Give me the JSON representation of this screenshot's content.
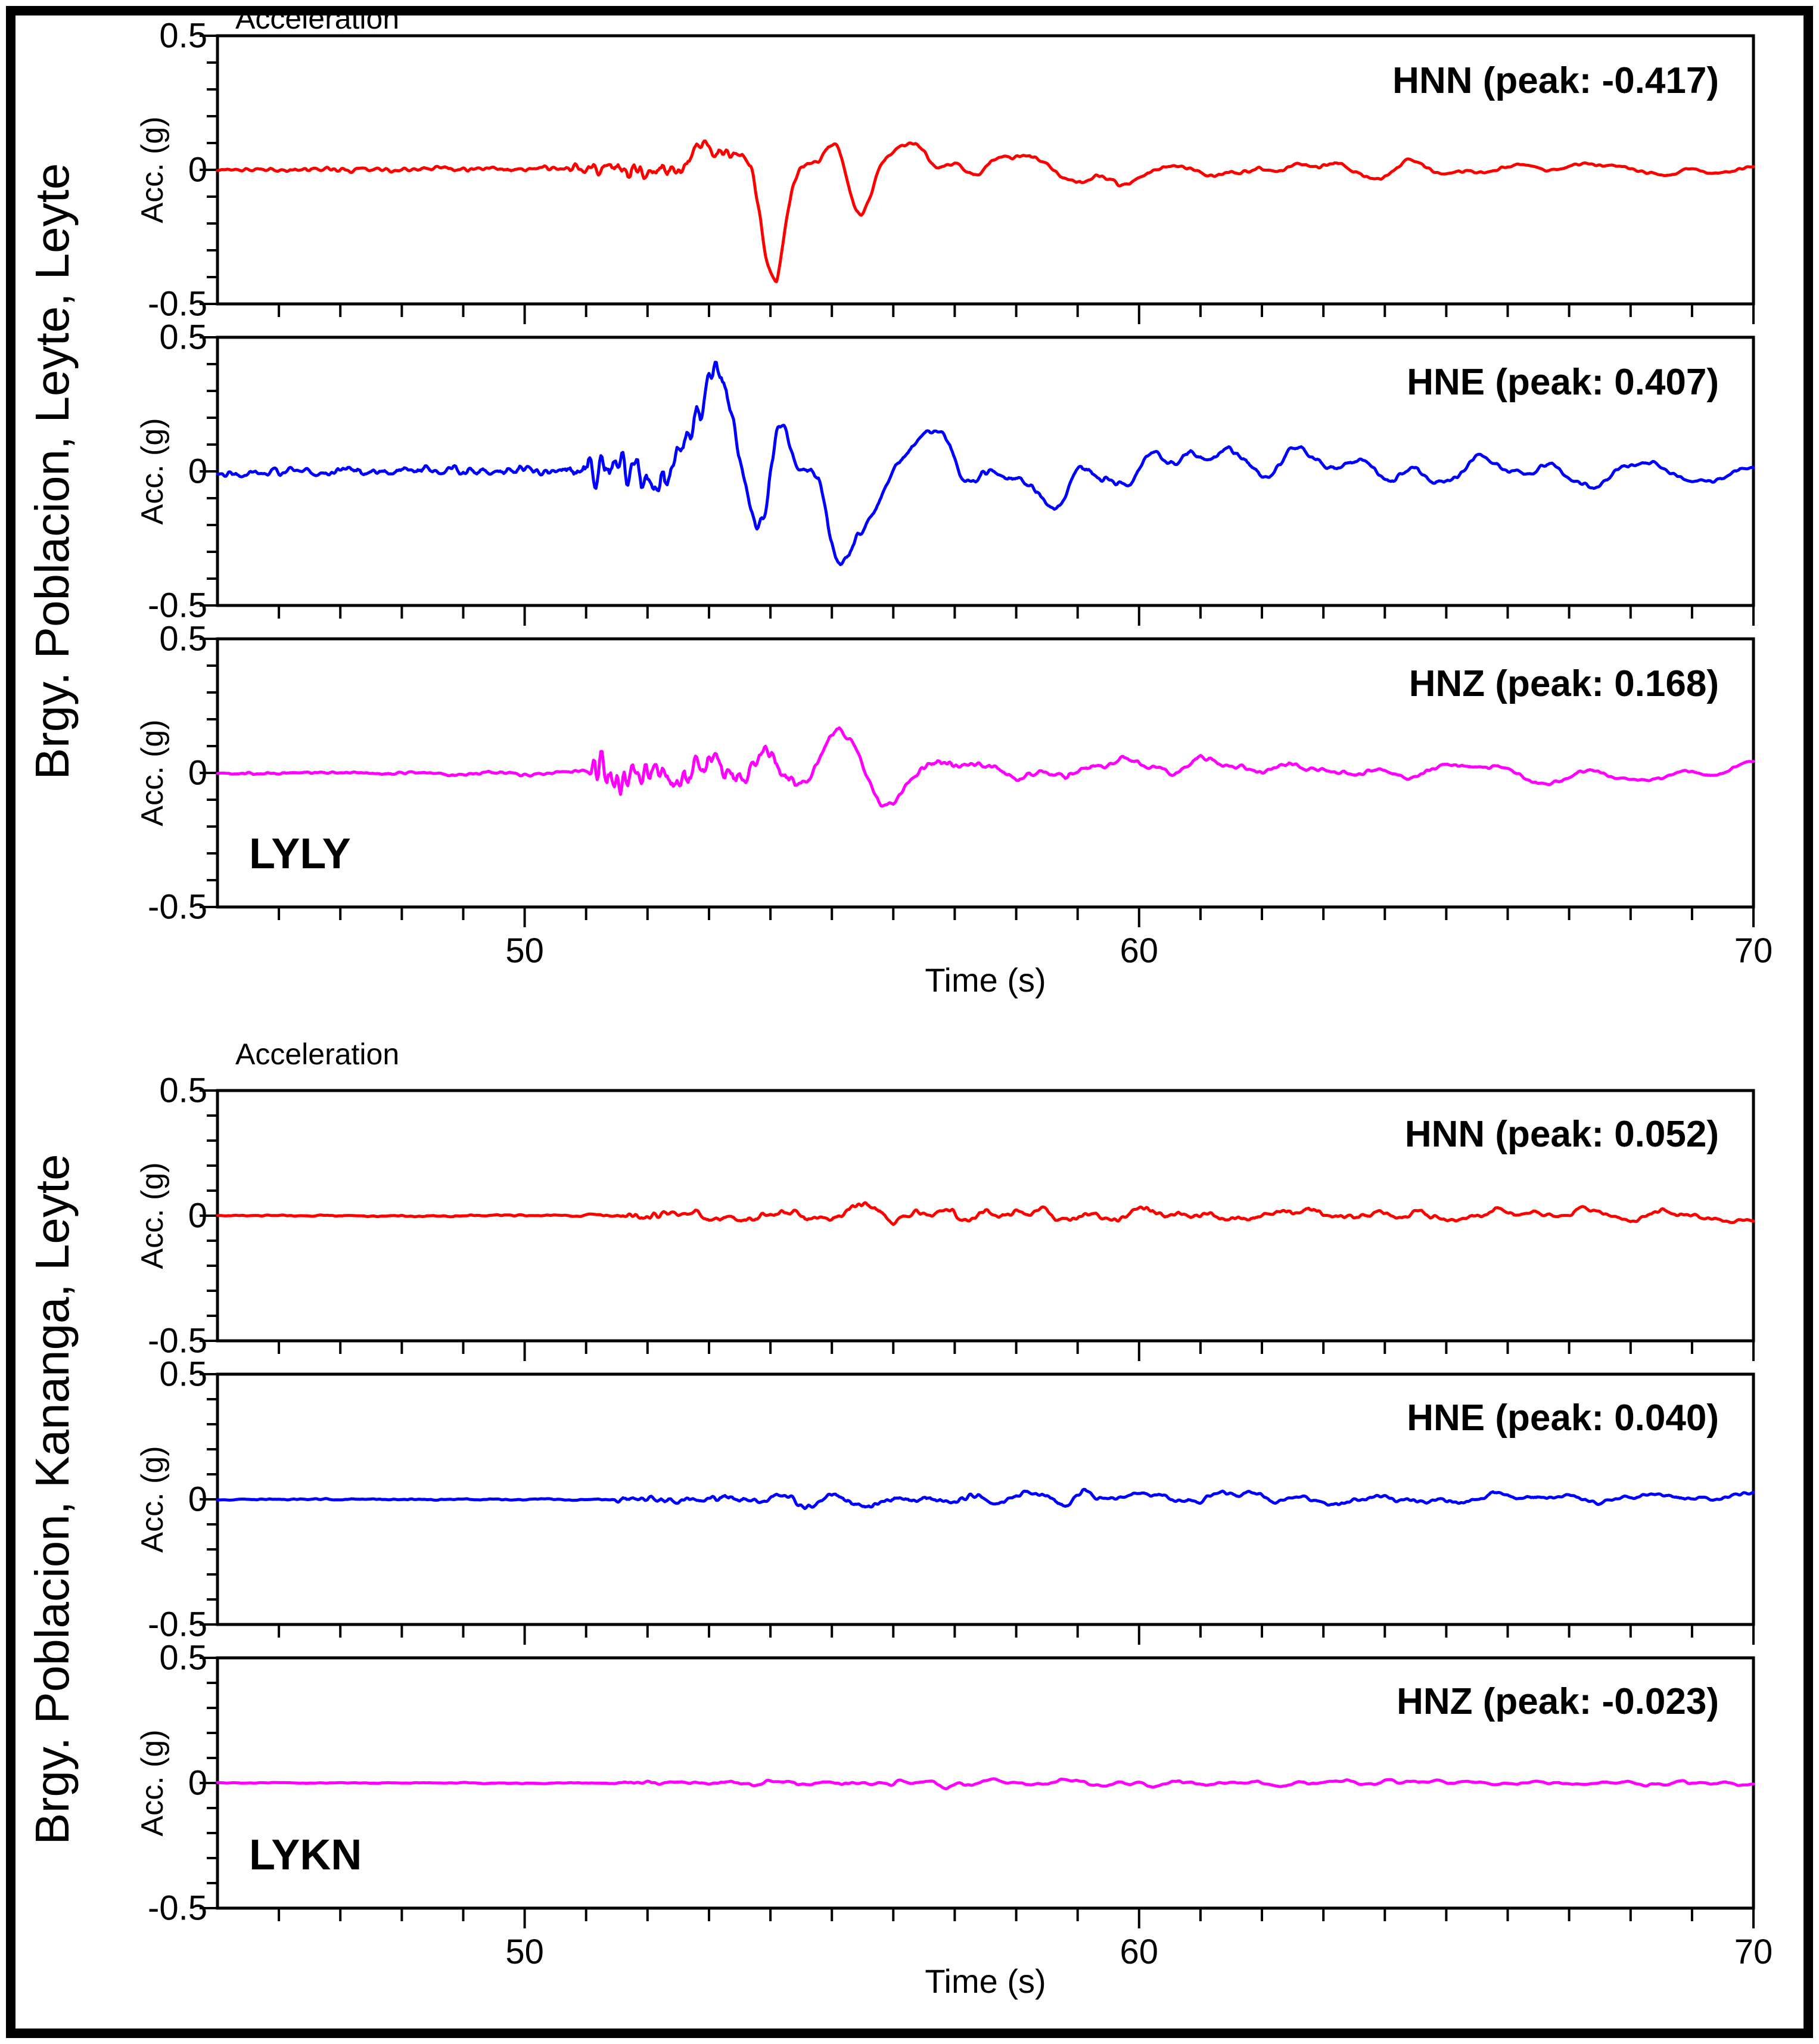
{
  "chart_data": {
    "type": "line",
    "title": "Acceleration",
    "xlabel": "Time (s)",
    "ylabel": "Acc. (g)",
    "x_range": [
      45,
      70
    ],
    "y_range": [
      -0.5,
      0.5
    ],
    "x_major_ticks": [
      50,
      60,
      70
    ],
    "x_minor_step": 1,
    "y_major_ticks": [
      0.5,
      0,
      -0.5
    ],
    "y_tick_labels": [
      "0.5",
      "0",
      "-0.5"
    ],
    "y_minor_step": 0.1,
    "grid": false,
    "background": "#ffffff",
    "frame_color": "#000000",
    "stations": [
      {
        "code": "LYLY",
        "name": "Brgy. Poblacion, Leyte, Leyte",
        "channels": [
          {
            "id": "HNN",
            "label": "HNN (peak: -0.417)",
            "peak": -0.417,
            "color": "#ff0000",
            "seed": 11,
            "lfw": 9,
            "hfw": 1,
            "envP": [
              [
                45,
                0.02
              ],
              [
                50.6,
                0.025
              ],
              [
                51,
                0.09
              ],
              [
                52.6,
                0.12
              ],
              [
                53.2,
                0.06
              ],
              [
                55,
                0.02
              ],
              [
                70,
                0.01
              ]
            ],
            "envS": [
              [
                45,
                0.007
              ],
              [
                52.4,
                0.02
              ],
              [
                53,
                0.25
              ],
              [
                53.7,
                0.62
              ],
              [
                54.1,
                1
              ],
              [
                54.6,
                0.52
              ],
              [
                55.6,
                0.34
              ],
              [
                57,
                0.26
              ],
              [
                58.5,
                0.18
              ],
              [
                60.5,
                0.13
              ],
              [
                63,
                0.1
              ],
              [
                66,
                0.09
              ],
              [
                70,
                0.075
              ]
            ]
          },
          {
            "id": "HNE",
            "label": "HNE (peak: 0.407)",
            "peak": 0.407,
            "color": "#0000ff",
            "seed": 22,
            "lfw": 9,
            "hfw": 1,
            "envP": [
              [
                45,
                0.02
              ],
              [
                50.6,
                0.025
              ],
              [
                51,
                0.09
              ],
              [
                52.5,
                0.12
              ],
              [
                53.1,
                0.06
              ],
              [
                55,
                0.02
              ],
              [
                70,
                0.01
              ]
            ],
            "envS": [
              [
                45,
                0.007
              ],
              [
                52.3,
                0.02
              ],
              [
                52.9,
                0.3
              ],
              [
                53.4,
                1
              ],
              [
                54,
                0.85
              ],
              [
                54.7,
                0.5
              ],
              [
                55.6,
                0.33
              ],
              [
                57,
                0.26
              ],
              [
                58.5,
                0.19
              ],
              [
                60.5,
                0.14
              ],
              [
                63,
                0.11
              ],
              [
                66,
                0.1
              ],
              [
                70,
                0.08
              ]
            ]
          },
          {
            "id": "HNZ",
            "label": "HNZ (peak: 0.168)",
            "peak": 0.168,
            "color": "#ff00ff",
            "seed": 33,
            "lfw": 11,
            "hfw": 1,
            "envP": [
              [
                45,
                0.02
              ],
              [
                51,
                0.02
              ],
              [
                51.15,
                0.3
              ],
              [
                52.2,
                0.25
              ],
              [
                53,
                0.2
              ],
              [
                54,
                0.12
              ],
              [
                55.5,
                0.05
              ],
              [
                70,
                0.015
              ]
            ],
            "envS": [
              [
                45,
                0.005
              ],
              [
                52.6,
                0.06
              ],
              [
                53.3,
                0.5
              ],
              [
                54.2,
                0.75
              ],
              [
                54.8,
                1
              ],
              [
                55.4,
                0.8
              ],
              [
                56.3,
                0.55
              ],
              [
                57.5,
                0.42
              ],
              [
                59,
                0.3
              ],
              [
                61,
                0.24
              ],
              [
                64,
                0.19
              ],
              [
                67,
                0.16
              ],
              [
                70,
                0.13
              ]
            ]
          }
        ]
      },
      {
        "code": "LYKN",
        "name": "Brgy. Poblacion, Kananga, Leyte",
        "channels": [
          {
            "id": "HNN",
            "label": "HNN (peak: 0.052)",
            "peak": 0.052,
            "color": "#ff0000",
            "seed": 44,
            "lfw": 6,
            "hfw": 1,
            "envP": [
              [
                45,
                0.05
              ],
              [
                51.4,
                0.05
              ],
              [
                51.6,
                0.25
              ],
              [
                53,
                0.25
              ],
              [
                70,
                0.12
              ]
            ],
            "envS": [
              [
                45,
                0.04
              ],
              [
                51.8,
                0.08
              ],
              [
                53,
                0.35
              ],
              [
                54.5,
                0.6
              ],
              [
                56,
                0.8
              ],
              [
                57,
                1
              ],
              [
                58.2,
                0.85
              ],
              [
                59.5,
                0.75
              ],
              [
                61,
                0.6
              ],
              [
                63,
                0.5
              ],
              [
                65.5,
                0.45
              ],
              [
                68,
                0.42
              ],
              [
                70,
                0.4
              ]
            ]
          },
          {
            "id": "HNE",
            "label": "HNE (peak: 0.040)",
            "peak": 0.04,
            "color": "#0000ff",
            "seed": 55,
            "lfw": 6,
            "hfw": 1,
            "envP": [
              [
                45,
                0.05
              ],
              [
                51.4,
                0.05
              ],
              [
                51.6,
                0.25
              ],
              [
                53,
                0.25
              ],
              [
                70,
                0.12
              ]
            ],
            "envS": [
              [
                45,
                0.04
              ],
              [
                51.8,
                0.08
              ],
              [
                53,
                0.4
              ],
              [
                54.5,
                0.65
              ],
              [
                55.5,
                0.8
              ],
              [
                56.5,
                0.9
              ],
              [
                57.5,
                1
              ],
              [
                58.8,
                0.85
              ],
              [
                60,
                0.75
              ],
              [
                62,
                0.6
              ],
              [
                64,
                0.5
              ],
              [
                66,
                0.45
              ],
              [
                70,
                0.4
              ]
            ]
          },
          {
            "id": "HNZ",
            "label": "HNZ (peak: -0.023)",
            "peak": -0.023,
            "color": "#ff00ff",
            "seed": 66,
            "lfw": 4,
            "hfw": 1,
            "envP": [
              [
                45,
                0.06
              ],
              [
                51.3,
                0.06
              ],
              [
                51.5,
                0.2
              ],
              [
                53,
                0.2
              ],
              [
                70,
                0.12
              ]
            ],
            "envS": [
              [
                45,
                0.05
              ],
              [
                51.5,
                0.1
              ],
              [
                53,
                0.45
              ],
              [
                55,
                0.8
              ],
              [
                56.2,
                1
              ],
              [
                57.5,
                0.8
              ],
              [
                59,
                0.7
              ],
              [
                61,
                0.6
              ],
              [
                63.5,
                0.55
              ],
              [
                66,
                0.5
              ],
              [
                70,
                0.45
              ]
            ]
          }
        ]
      }
    ]
  }
}
